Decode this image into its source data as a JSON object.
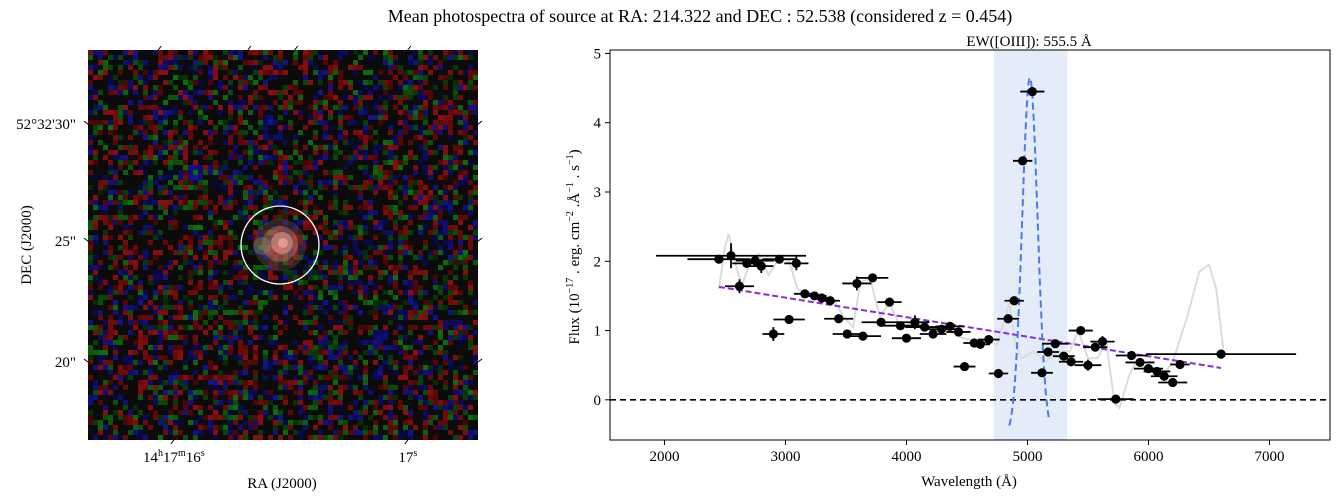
{
  "figure": {
    "title": "Mean photospectra of source at RA: 214.322 and DEC : 52.538 (considered z = 0.454)"
  },
  "image_panel": {
    "type": "sky-image",
    "xlabel": "RA (J2000)",
    "ylabel": "DEC (J2000)",
    "ra_ticks": [
      {
        "pos": 0.22,
        "label_main": "14",
        "sup1": "h",
        "mid": "17",
        "sup2": "m",
        "end": "16",
        "sup3": "s"
      },
      {
        "pos": 0.82,
        "label_main": "17",
        "sup1": "s",
        "mid": "",
        "sup2": "",
        "end": "",
        "sup3": ""
      }
    ],
    "dec_ticks": [
      {
        "pos": 0.19,
        "label": "52°32'30\""
      },
      {
        "pos": 0.49,
        "label": "25\""
      },
      {
        "pos": 0.8,
        "label": "20\""
      }
    ]
  },
  "chart_data": {
    "type": "scatter",
    "title": "EW([OIII]): 555.5 Å",
    "xlabel": "Wavelength (Å)",
    "ylabel": "Flux (10^-17 . erg. cm^-2 .Å^-1 . s^-1)",
    "xlim": [
      1550,
      7500
    ],
    "ylim": [
      -0.58,
      5.05
    ],
    "xticks": [
      2000,
      3000,
      4000,
      5000,
      6000,
      7000
    ],
    "yticks": [
      0,
      1,
      2,
      3,
      4,
      5
    ],
    "highlight_band": [
      4720,
      5330
    ],
    "zero_line": 0,
    "continuum_fit": {
      "x": [
        2450,
        6600
      ],
      "y": [
        1.63,
        0.46
      ]
    },
    "gaussian_fit": {
      "center": 5020,
      "amplitude": 4.65,
      "sigma": 62,
      "xrange": [
        4850,
        5180
      ]
    },
    "model_curve": [
      [
        2450,
        1.6
      ],
      [
        2500,
        2.2
      ],
      [
        2530,
        2.4
      ],
      [
        2580,
        2.0
      ],
      [
        2640,
        1.65
      ],
      [
        2700,
        1.95
      ],
      [
        2780,
        2.1
      ],
      [
        2860,
        1.8
      ],
      [
        2950,
        2.05
      ],
      [
        3030,
        2.0
      ],
      [
        3100,
        1.6
      ],
      [
        3200,
        1.5
      ],
      [
        3300,
        1.5
      ],
      [
        3400,
        1.45
      ],
      [
        3480,
        1.2
      ],
      [
        3560,
        1.05
      ],
      [
        3620,
        1.7
      ],
      [
        3700,
        1.75
      ],
      [
        3780,
        1.2
      ],
      [
        3860,
        1.4
      ],
      [
        3950,
        1.05
      ],
      [
        4050,
        1.1
      ],
      [
        4150,
        1.05
      ],
      [
        4250,
        1.0
      ],
      [
        4350,
        1.0
      ],
      [
        4450,
        0.9
      ],
      [
        4550,
        0.85
      ],
      [
        4650,
        0.85
      ],
      [
        4750,
        0.8
      ],
      [
        4850,
        1.4
      ],
      [
        4900,
        0.8
      ],
      [
        4950,
        0.6
      ],
      [
        5050,
        0.7
      ],
      [
        5150,
        0.55
      ],
      [
        5250,
        0.7
      ],
      [
        5350,
        0.7
      ],
      [
        5420,
        1.0
      ],
      [
        5500,
        0.6
      ],
      [
        5580,
        0.6
      ],
      [
        5650,
        0.85
      ],
      [
        5720,
        -0.05
      ],
      [
        5760,
        -0.12
      ],
      [
        5840,
        0.35
      ],
      [
        5900,
        0.55
      ],
      [
        5980,
        0.45
      ],
      [
        6050,
        0.4
      ],
      [
        6120,
        0.35
      ],
      [
        6200,
        0.55
      ],
      [
        6320,
        1.2
      ],
      [
        6420,
        1.85
      ],
      [
        6500,
        1.95
      ],
      [
        6560,
        1.6
      ],
      [
        6620,
        0.7
      ]
    ],
    "series": [
      {
        "name": "",
        "points": [
          [
            2450,
            2.03,
            260,
            0.06
          ],
          [
            2550,
            2.08,
            620,
            0.18
          ],
          [
            2620,
            1.64,
            120,
            0.1
          ],
          [
            2680,
            1.97,
            120,
            0.05
          ],
          [
            2750,
            2.01,
            160,
            0.08
          ],
          [
            2800,
            1.93,
            100,
            0.1
          ],
          [
            2900,
            0.95,
            90,
            0.1
          ],
          [
            2950,
            2.03,
            140,
            0.06
          ],
          [
            3030,
            1.16,
            130,
            0.06
          ],
          [
            3090,
            1.97,
            100,
            0.1
          ],
          [
            3160,
            1.53,
            90,
            0.04
          ],
          [
            3240,
            1.5,
            100,
            0.04
          ],
          [
            3300,
            1.47,
            90,
            0.04
          ],
          [
            3370,
            1.43,
            80,
            0.04
          ],
          [
            3440,
            1.17,
            120,
            0.05
          ],
          [
            3510,
            0.95,
            120,
            0.05
          ],
          [
            3590,
            1.68,
            120,
            0.1
          ],
          [
            3640,
            0.92,
            150,
            0.04
          ],
          [
            3720,
            1.76,
            130,
            0.05
          ],
          [
            3790,
            1.12,
            160,
            0.04
          ],
          [
            3860,
            1.41,
            100,
            0.04
          ],
          [
            3950,
            1.07,
            170,
            0.04
          ],
          [
            4000,
            0.89,
            120,
            0.04
          ],
          [
            4070,
            1.12,
            120,
            0.1
          ],
          [
            4150,
            1.05,
            160,
            0.04
          ],
          [
            4220,
            0.95,
            110,
            0.04
          ],
          [
            4290,
            1.02,
            120,
            0.04
          ],
          [
            4360,
            1.06,
            120,
            0.04
          ],
          [
            4430,
            0.98,
            100,
            0.04
          ],
          [
            4480,
            0.48,
            90,
            0.04
          ],
          [
            4560,
            0.82,
            90,
            0.04
          ],
          [
            4610,
            0.8,
            80,
            0.04
          ],
          [
            4680,
            0.87,
            90,
            0.04
          ],
          [
            4760,
            0.38,
            80,
            0.04
          ],
          [
            4840,
            1.17,
            90,
            0.04
          ],
          [
            4890,
            1.43,
            80,
            0.04
          ],
          [
            4960,
            3.45,
            80,
            0.04
          ],
          [
            5040,
            4.45,
            100,
            0.06
          ],
          [
            5120,
            0.39,
            90,
            0.04
          ],
          [
            5170,
            0.69,
            90,
            0.06
          ],
          [
            5230,
            0.81,
            110,
            0.04
          ],
          [
            5300,
            0.63,
            90,
            0.04
          ],
          [
            5360,
            0.55,
            100,
            0.04
          ],
          [
            5440,
            1.0,
            100,
            0.04
          ],
          [
            5500,
            0.5,
            110,
            0.08
          ],
          [
            5560,
            0.76,
            100,
            0.04
          ],
          [
            5620,
            0.84,
            100,
            0.08
          ],
          [
            5730,
            0.01,
            150,
            0.04
          ],
          [
            5860,
            0.64,
            130,
            0.04
          ],
          [
            5930,
            0.54,
            120,
            0.04
          ],
          [
            6000,
            0.45,
            120,
            0.04
          ],
          [
            6070,
            0.41,
            110,
            0.04
          ],
          [
            6130,
            0.34,
            110,
            0.04
          ],
          [
            6200,
            0.25,
            120,
            0.04
          ],
          [
            6260,
            0.51,
            80,
            0.04
          ],
          [
            6600,
            0.66,
            620,
            0.04
          ]
        ]
      }
    ]
  },
  "colors": {
    "points": "#000000",
    "continuum": "#8a2be2",
    "gaussian": "#4a7be8",
    "model": "#dcdcdc",
    "band": "#e4ecfa",
    "circle": "#ffffff"
  }
}
